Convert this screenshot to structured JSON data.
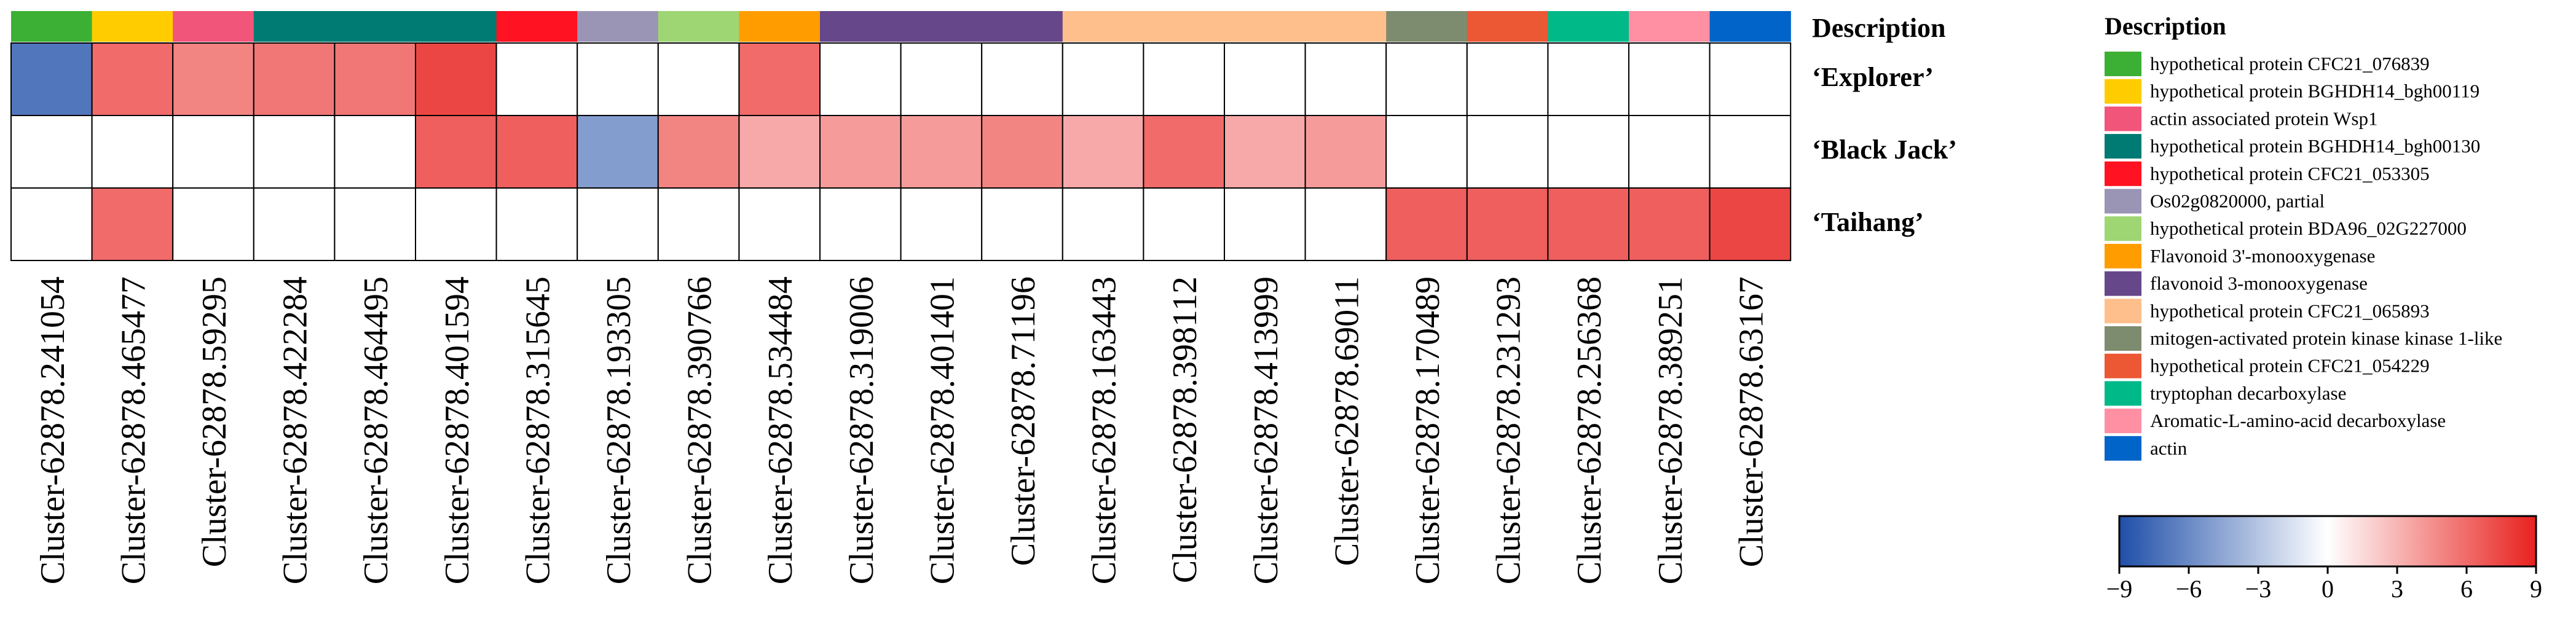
{
  "chart_data": {
    "type": "heatmap",
    "rows": [
      "‘Explorer’",
      "‘Black Jack’",
      "‘Taihang’"
    ],
    "columns": [
      "Cluster-62878.241054",
      "Cluster-62878.465477",
      "Cluster-62878.59295",
      "Cluster-62878.422284",
      "Cluster-62878.464495",
      "Cluster-62878.401594",
      "Cluster-62878.315645",
      "Cluster-62878.193305",
      "Cluster-62878.390766",
      "Cluster-62878.534484",
      "Cluster-62878.319006",
      "Cluster-62878.401401",
      "Cluster-62878.71196",
      "Cluster-62878.163443",
      "Cluster-62878.398112",
      "Cluster-62878.413999",
      "Cluster-62878.69011",
      "Cluster-62878.170489",
      "Cluster-62878.231293",
      "Cluster-62878.256368",
      "Cluster-62878.389251",
      "Cluster-62878.63167"
    ],
    "column_group": [
      0,
      1,
      2,
      3,
      3,
      3,
      4,
      5,
      6,
      7,
      8,
      8,
      8,
      9,
      9,
      9,
      9,
      10,
      11,
      12,
      13,
      14
    ],
    "values": [
      [
        -7,
        6,
        5,
        5.5,
        5.5,
        7.5,
        0,
        0,
        0,
        6,
        0,
        0,
        0,
        0,
        0,
        0,
        0,
        0,
        0,
        0,
        0,
        0
      ],
      [
        0,
        0,
        0,
        0,
        0,
        6.5,
        6.5,
        -5,
        5,
        3.5,
        4,
        4,
        5,
        3.5,
        6,
        3.5,
        4,
        0,
        0,
        0,
        0,
        0
      ],
      [
        0,
        6,
        0,
        0,
        0,
        0,
        0,
        0,
        0,
        0,
        0,
        0,
        0,
        0,
        0,
        0,
        0,
        6.5,
        6.5,
        6.5,
        6.5,
        7.5
      ]
    ],
    "row_header": "Description",
    "legend_title": "Description",
    "legend": [
      {
        "label": "hypothetical protein CFC21_076839",
        "color": "#3cb034"
      },
      {
        "label": "hypothetical protein BGHDH14_bgh00119",
        "color": "#ffcc00"
      },
      {
        "label": "actin associated protein Wsp1",
        "color": "#f2557a"
      },
      {
        "label": "hypothetical protein BGHDH14_bgh00130",
        "color": "#007b73"
      },
      {
        "label": "hypothetical protein CFC21_053305",
        "color": "#ff1221"
      },
      {
        "label": "Os02g0820000, partial",
        "color": "#9a95b5"
      },
      {
        "label": "hypothetical protein BDA96_02G227000",
        "color": "#9ed673"
      },
      {
        "label": "Flavonoid 3'-monooxygenase",
        "color": "#ff9d00"
      },
      {
        "label": "flavonoid 3-monooxygenase",
        "color": "#65478a"
      },
      {
        "label": "hypothetical protein CFC21_065893",
        "color": "#ffbf8c"
      },
      {
        "label": "mitogen-activated protein kinase kinase 1-like",
        "color": "#7d8c6e"
      },
      {
        "label": "hypothetical protein CFC21_054229",
        "color": "#ec5734"
      },
      {
        "label": "tryptophan decarboxylase",
        "color": "#00b989"
      },
      {
        "label": "Aromatic-L-amino-acid decarboxylase",
        "color": "#ff8fa3"
      },
      {
        "label": "actin",
        "color": "#0064c8"
      }
    ],
    "colorbar": {
      "min": -9,
      "max": 9,
      "ticks": [
        "−9",
        "−6",
        "−3",
        "0",
        "3",
        "6",
        "9"
      ],
      "low_color": "#1f4fa8",
      "mid_color": "#ffffff",
      "high_color": "#e8211e"
    }
  }
}
